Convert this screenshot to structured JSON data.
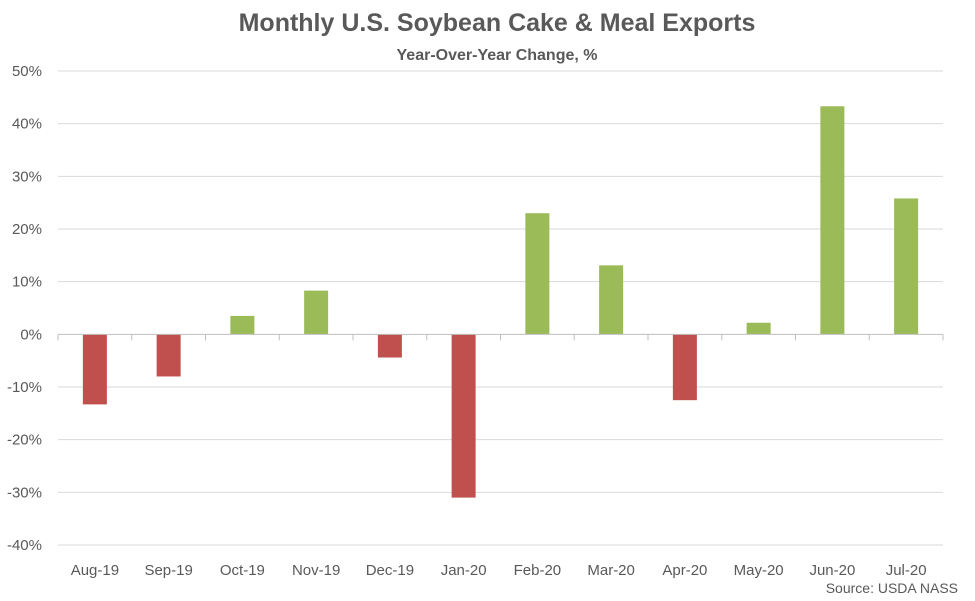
{
  "chart_data": {
    "type": "bar",
    "title": "Monthly U.S. Soybean Cake & Meal Exports",
    "subtitle": "Year-Over-Year Change, %",
    "categories": [
      "Aug-19",
      "Sep-19",
      "Oct-19",
      "Nov-19",
      "Dec-19",
      "Jan-20",
      "Feb-20",
      "Mar-20",
      "Apr-20",
      "May-20",
      "Jun-20",
      "Jul-20"
    ],
    "values": [
      -13.3,
      -8.0,
      3.5,
      8.3,
      -4.4,
      -31.0,
      23.0,
      13.1,
      -12.5,
      2.2,
      43.3,
      25.8
    ],
    "ylim": [
      -40,
      50
    ],
    "y_ticks": [
      50,
      40,
      30,
      20,
      10,
      0,
      -10,
      -20,
      -30,
      -40
    ],
    "y_tick_labels": [
      "50%",
      "40%",
      "30%",
      "20%",
      "10%",
      "0%",
      "-10%",
      "-20%",
      "-30%",
      "-40%"
    ],
    "grid": true,
    "legend": "none",
    "positive_color": "#9bbb59",
    "negative_color": "#c0504d",
    "source": "Source: USDA NASS"
  }
}
